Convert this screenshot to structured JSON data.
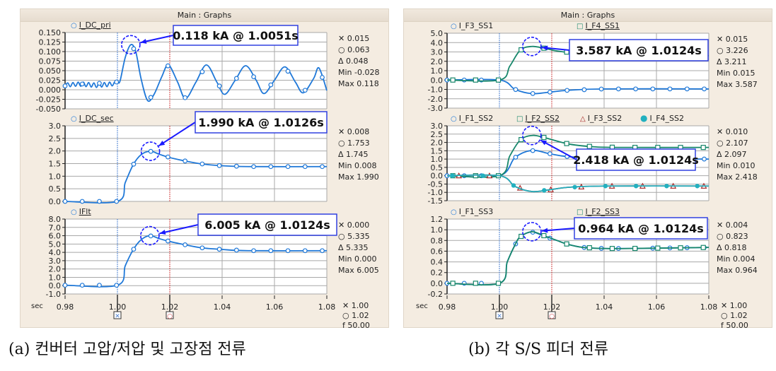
{
  "panels": [
    {
      "window_title": "Main : Graphs",
      "caption": "(a) 컨버터 고압/저압 및 고장점 전류",
      "x_unit": "sec",
      "x_ticks": [
        "0.98",
        "1.00",
        "1.02",
        "1.04",
        "1.06",
        "1.08"
      ],
      "axis_readouts": [
        {
          "icon": "cross",
          "value": "1.00"
        },
        {
          "icon": "circle",
          "value": "1.02"
        },
        {
          "label": "f",
          "value": "50.00"
        }
      ]
    },
    {
      "window_title": "Main : Graphs",
      "caption": "(b) 각 S/S 피더 전류",
      "x_unit": "sec",
      "x_ticks": [
        "0.98",
        "1.00",
        "1.02",
        "1.04",
        "1.06",
        "1.08"
      ],
      "axis_readouts": [
        {
          "icon": "cross",
          "value": "1.00"
        },
        {
          "icon": "circle",
          "value": "1.02"
        },
        {
          "label": "f",
          "value": "50.00"
        }
      ]
    }
  ],
  "colors": {
    "blue": "#1f78d8",
    "green": "#17876b",
    "teal": "#22b0bf",
    "darkred": "#a32020",
    "cursor1": "#4a7fd0",
    "cursor2": "#d04040",
    "grid": "#a8a8a8",
    "callout": "#1a1aff"
  },
  "chart_data": [
    {
      "type": "line",
      "panel": 0,
      "xlim": [
        0.98,
        1.08
      ],
      "ylim": [
        -0.05,
        0.15
      ],
      "yticks": [
        "0.150",
        "0.125",
        "0.100",
        "0.075",
        "0.050",
        "0.025",
        "0.000",
        "-0.025",
        "-0.050"
      ],
      "cursors": [
        1.0,
        1.02
      ],
      "series": [
        {
          "name": "I_DC_pri",
          "color": "#1f78d8",
          "marker": "circle",
          "active": true,
          "points": [
            [
              0.98,
              0.01
            ],
            [
              0.981,
              0.018
            ],
            [
              0.982,
              0.008
            ],
            [
              0.983,
              0.019
            ],
            [
              0.984,
              0.009
            ],
            [
              0.985,
              0.02
            ],
            [
              0.986,
              0.009
            ],
            [
              0.987,
              0.02
            ],
            [
              0.988,
              0.008
            ],
            [
              0.989,
              0.019
            ],
            [
              0.99,
              0.007
            ],
            [
              0.991,
              0.018
            ],
            [
              0.992,
              0.006
            ],
            [
              0.993,
              0.018
            ],
            [
              0.994,
              0.007
            ],
            [
              0.995,
              0.019
            ],
            [
              0.996,
              0.008
            ],
            [
              0.997,
              0.02
            ],
            [
              0.998,
              0.01
            ],
            [
              0.999,
              0.021
            ],
            [
              1.0,
              0.02
            ],
            [
              1.001,
              0.023
            ],
            [
              1.003,
              0.085
            ],
            [
              1.0051,
              0.118
            ],
            [
              1.007,
              0.1
            ],
            [
              1.009,
              0.03
            ],
            [
              1.0115,
              -0.028
            ],
            [
              1.014,
              -0.012
            ],
            [
              1.017,
              0.035
            ],
            [
              1.0195,
              0.065
            ],
            [
              1.023,
              0.02
            ],
            [
              1.026,
              -0.023
            ],
            [
              1.03,
              0.02
            ],
            [
              1.034,
              0.065
            ],
            [
              1.038,
              0.02
            ],
            [
              1.041,
              -0.012
            ],
            [
              1.045,
              0.025
            ],
            [
              1.049,
              0.063
            ],
            [
              1.053,
              0.025
            ],
            [
              1.056,
              -0.01
            ],
            [
              1.06,
              0.025
            ],
            [
              1.064,
              0.06
            ],
            [
              1.068,
              0.02
            ],
            [
              1.071,
              -0.008
            ],
            [
              1.075,
              0.03
            ],
            [
              1.077,
              0.057
            ],
            [
              1.08,
              -0.002
            ]
          ]
        }
      ],
      "readouts": [
        {
          "icon": "cross",
          "value": "0.015"
        },
        {
          "icon": "circle",
          "value": "0.063"
        },
        {
          "icon": "triangle",
          "value": "0.048"
        },
        {
          "label": "Min",
          "value": "-0.028"
        },
        {
          "label": "Max",
          "value": "0.118"
        }
      ],
      "annotation": {
        "text": "0.118 kA @ 1.0051s",
        "x": 1.0051,
        "y": 0.118
      }
    },
    {
      "type": "line",
      "panel": 0,
      "xlim": [
        0.98,
        1.08
      ],
      "ylim": [
        0,
        3
      ],
      "yticks": [
        "3.0",
        "2.5",
        "2.0",
        "1.5",
        "1.0",
        "0.5",
        "0.0"
      ],
      "cursors": [
        1.0,
        1.02
      ],
      "series": [
        {
          "name": "I_DC_sec",
          "color": "#1f78d8",
          "marker": "circle",
          "active": true,
          "points": [
            [
              0.98,
              0.0
            ],
            [
              1.0,
              0.0
            ],
            [
              1.003,
              0.75
            ],
            [
              1.006,
              1.45
            ],
            [
              1.009,
              1.85
            ],
            [
              1.0126,
              1.99
            ],
            [
              1.016,
              1.87
            ],
            [
              1.02,
              1.74
            ],
            [
              1.026,
              1.6
            ],
            [
              1.032,
              1.49
            ],
            [
              1.039,
              1.42
            ],
            [
              1.05,
              1.38
            ],
            [
              1.08,
              1.38
            ]
          ]
        }
      ],
      "readouts": [
        {
          "icon": "cross",
          "value": "0.008"
        },
        {
          "icon": "circle",
          "value": "1.753"
        },
        {
          "icon": "triangle",
          "value": "1.745"
        },
        {
          "label": "Min",
          "value": "0.008"
        },
        {
          "label": "Max",
          "value": "1.990"
        }
      ],
      "annotation": {
        "text": "1.990 kA @ 1.0126s",
        "x": 1.0126,
        "y": 1.99
      }
    },
    {
      "type": "line",
      "panel": 0,
      "xlim": [
        0.98,
        1.08
      ],
      "ylim": [
        -1,
        8
      ],
      "yticks": [
        "8.0",
        "7.0",
        "6.0",
        "5.0",
        "4.0",
        "3.0",
        "2.0",
        "1.0",
        "0.0",
        "-1.0"
      ],
      "cursors": [
        1.0,
        1.02
      ],
      "series": [
        {
          "name": "IFlt",
          "color": "#1f78d8",
          "marker": "circle",
          "active": true,
          "points": [
            [
              0.98,
              0.05
            ],
            [
              1.0,
              0.05
            ],
            [
              1.003,
              2.4
            ],
            [
              1.006,
              4.3
            ],
            [
              1.009,
              5.5
            ],
            [
              1.0124,
              6.005
            ],
            [
              1.016,
              5.65
            ],
            [
              1.02,
              5.3
            ],
            [
              1.026,
              4.9
            ],
            [
              1.032,
              4.55
            ],
            [
              1.04,
              4.35
            ],
            [
              1.05,
              4.2
            ],
            [
              1.08,
              4.2
            ]
          ]
        }
      ],
      "readouts": [
        {
          "icon": "cross",
          "value": "0.000"
        },
        {
          "icon": "circle",
          "value": "5.335"
        },
        {
          "icon": "triangle",
          "value": "5.335"
        },
        {
          "label": "Min",
          "value": "0.000"
        },
        {
          "label": "Max",
          "value": "6.005"
        }
      ],
      "annotation": {
        "text": "6.005 kA @ 1.0124s",
        "x": 1.0124,
        "y": 6.005
      }
    },
    {
      "type": "line",
      "panel": 1,
      "xlim": [
        0.98,
        1.08
      ],
      "ylim": [
        -3,
        5
      ],
      "yticks": [
        "5.0",
        "4.0",
        "3.0",
        "2.0",
        "1.0",
        "0.0",
        "-1.0",
        "-2.0",
        "-3.0"
      ],
      "cursors": [
        1.0,
        1.02
      ],
      "series": [
        {
          "name": "I_F3_SS1",
          "color": "#1f78d8",
          "marker": "circle",
          "active": false,
          "points": [
            [
              0.98,
              0.0
            ],
            [
              1.0,
              0.0
            ],
            [
              1.006,
              -1.0
            ],
            [
              1.0124,
              -1.45
            ],
            [
              1.019,
              -1.3
            ],
            [
              1.026,
              -1.1
            ],
            [
              1.04,
              -0.95
            ],
            [
              1.08,
              -0.95
            ]
          ]
        },
        {
          "name": "I_F4_SS1",
          "color": "#17876b",
          "marker": "square",
          "active": true,
          "points": [
            [
              0.98,
              0.0
            ],
            [
              1.0,
              0.0
            ],
            [
              1.004,
              1.5
            ],
            [
              1.008,
              3.2
            ],
            [
              1.0124,
              3.587
            ],
            [
              1.017,
              3.4
            ],
            [
              1.022,
              3.1
            ],
            [
              1.03,
              2.85
            ],
            [
              1.045,
              2.7
            ],
            [
              1.08,
              2.6
            ]
          ]
        }
      ],
      "readouts": [
        {
          "icon": "cross",
          "value": "0.015"
        },
        {
          "icon": "circle",
          "value": "3.226"
        },
        {
          "icon": "triangle",
          "value": "3.211"
        },
        {
          "label": "Min",
          "value": "0.015"
        },
        {
          "label": "Max",
          "value": "3.587"
        }
      ],
      "annotation": {
        "text": "3.587 kA @ 1.0124s",
        "x": 1.0124,
        "y": 3.587
      }
    },
    {
      "type": "line",
      "panel": 1,
      "xlim": [
        0.98,
        1.08
      ],
      "ylim": [
        -1.5,
        3
      ],
      "yticks": [
        "3.0",
        "2.5",
        "2.0",
        "1.5",
        "1.0",
        "0.5",
        "0.0",
        "-0.5",
        "-1.0",
        "-1.5"
      ],
      "cursors": [
        1.0,
        1.02
      ],
      "series": [
        {
          "name": "I_F1_SS2",
          "color": "#1f78d8",
          "marker": "circle",
          "active": false,
          "points": [
            [
              0.98,
              0.0
            ],
            [
              1.0,
              0.0
            ],
            [
              1.006,
              1.1
            ],
            [
              1.0124,
              1.52
            ],
            [
              1.019,
              1.33
            ],
            [
              1.026,
              1.15
            ],
            [
              1.04,
              1.05
            ],
            [
              1.08,
              1.0
            ]
          ]
        },
        {
          "name": "I_F2_SS2",
          "color": "#17876b",
          "marker": "square",
          "active": true,
          "points": [
            [
              0.98,
              0.0
            ],
            [
              1.0,
              0.0
            ],
            [
              1.004,
              1.2
            ],
            [
              1.008,
              2.15
            ],
            [
              1.0124,
              2.418
            ],
            [
              1.017,
              2.3
            ],
            [
              1.026,
              1.92
            ],
            [
              1.035,
              1.75
            ],
            [
              1.045,
              1.7
            ],
            [
              1.08,
              1.7
            ]
          ]
        },
        {
          "name": "I_F3_SS2",
          "color": "#a32020",
          "marker": "triangle",
          "active": false,
          "points": [
            [
              0.98,
              0.0
            ],
            [
              1.0,
              0.0
            ],
            [
              1.006,
              -0.65
            ],
            [
              1.0124,
              -0.95
            ],
            [
              1.019,
              -0.85
            ],
            [
              1.026,
              -0.7
            ],
            [
              1.04,
              -0.62
            ],
            [
              1.08,
              -0.62
            ]
          ]
        },
        {
          "name": "I_F4_SS2",
          "color": "#22b0bf",
          "marker": "dot",
          "active": false,
          "points": [
            [
              0.98,
              0.0
            ],
            [
              1.0,
              0.0
            ],
            [
              1.006,
              -0.65
            ],
            [
              1.0124,
              -0.95
            ],
            [
              1.019,
              -0.85
            ],
            [
              1.026,
              -0.7
            ],
            [
              1.04,
              -0.62
            ],
            [
              1.08,
              -0.62
            ]
          ]
        }
      ],
      "readouts": [
        {
          "icon": "cross",
          "value": "0.010"
        },
        {
          "icon": "circle",
          "value": "2.107"
        },
        {
          "icon": "triangle",
          "value": "2.097"
        },
        {
          "label": "Min",
          "value": "0.010"
        },
        {
          "label": "Max",
          "value": "2.418"
        }
      ],
      "annotation": {
        "text": "2.418 kA @ 1.0124s",
        "x": 1.0124,
        "y": 2.418
      }
    },
    {
      "type": "line",
      "panel": 1,
      "xlim": [
        0.98,
        1.08
      ],
      "ylim": [
        -0.2,
        1.2
      ],
      "yticks": [
        "1.2",
        "1.0",
        "0.8",
        "0.6",
        "0.4",
        "0.2",
        "0.0",
        "-0.2"
      ],
      "cursors": [
        1.0,
        1.02
      ],
      "series": [
        {
          "name": "I_F1_SS3",
          "color": "#1f78d8",
          "marker": "circle",
          "active": false,
          "points": [
            [
              0.98,
              0.0
            ],
            [
              1.0,
              0.0
            ],
            [
              1.003,
              0.4
            ],
            [
              1.006,
              0.72
            ],
            [
              1.008,
              0.87
            ],
            [
              1.0124,
              0.96
            ],
            [
              1.017,
              0.88
            ],
            [
              1.022,
              0.8
            ],
            [
              1.026,
              0.73
            ],
            [
              1.032,
              0.67
            ],
            [
              1.04,
              0.65
            ],
            [
              1.05,
              0.65
            ],
            [
              1.08,
              0.67
            ]
          ]
        },
        {
          "name": "I_F2_SS3",
          "color": "#17876b",
          "marker": "square",
          "active": true,
          "points": [
            [
              0.98,
              0.0
            ],
            [
              1.0,
              0.0
            ],
            [
              1.003,
              0.4
            ],
            [
              1.006,
              0.72
            ],
            [
              1.008,
              0.87
            ],
            [
              1.0124,
              0.964
            ],
            [
              1.017,
              0.89
            ],
            [
              1.022,
              0.8
            ],
            [
              1.026,
              0.73
            ],
            [
              1.032,
              0.67
            ],
            [
              1.04,
              0.65
            ],
            [
              1.05,
              0.65
            ],
            [
              1.08,
              0.67
            ]
          ]
        }
      ],
      "readouts": [
        {
          "icon": "cross",
          "value": "0.004"
        },
        {
          "icon": "circle",
          "value": "0.823"
        },
        {
          "icon": "triangle",
          "value": "0.818"
        },
        {
          "label": "Min",
          "value": "0.004"
        },
        {
          "label": "Max",
          "value": "0.964"
        }
      ],
      "annotation": {
        "text": "0.964 kA @ 1.0124s",
        "x": 1.0124,
        "y": 0.964
      }
    }
  ]
}
